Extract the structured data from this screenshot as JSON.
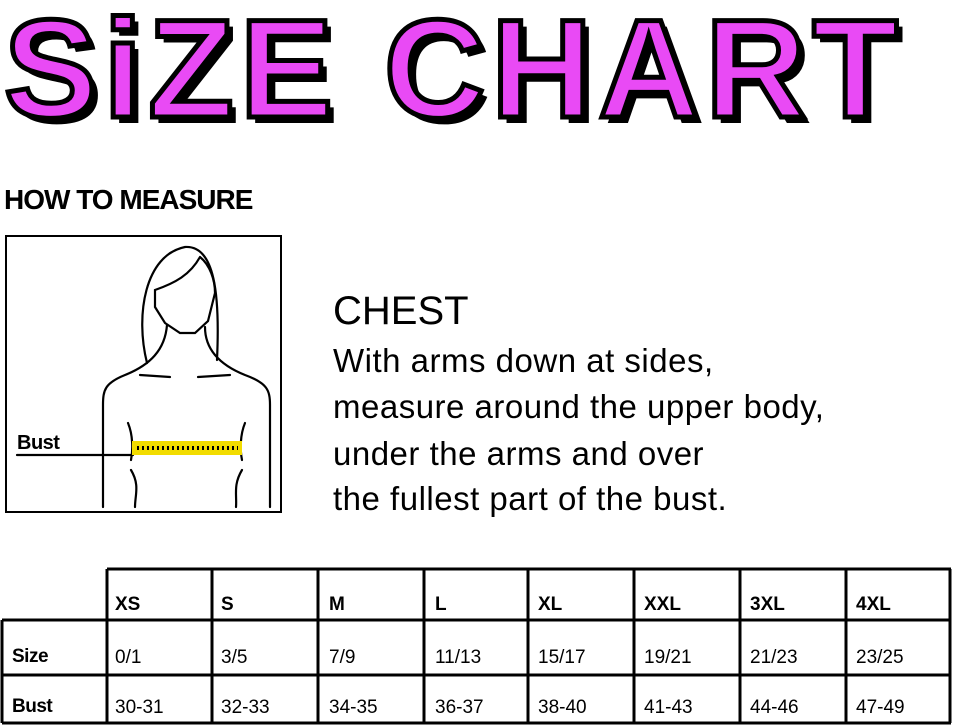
{
  "title": "SiZE CHART",
  "colors": {
    "title_fill": "#e94af5",
    "tape": "#f2dc00"
  },
  "how_to_measure": "HOW TO MEASURE",
  "illustration": {
    "label": "Bust"
  },
  "chest": {
    "heading": "CHEST",
    "lines": [
      "With arms down at sides,",
      "measure around the upper body,",
      "under the arms and over",
      "the fullest part of the bust."
    ]
  },
  "table": {
    "columns": [
      "XS",
      "S",
      "M",
      "L",
      "XL",
      "XXL",
      "3XL",
      "4XL"
    ],
    "rows": [
      {
        "label": "Size",
        "values": [
          "0/1",
          "3/5",
          "7/9",
          "11/13",
          "15/17",
          "19/21",
          "21/23",
          "23/25"
        ]
      },
      {
        "label": "Bust",
        "values": [
          "30-31",
          "32-33",
          "34-35",
          "36-37",
          "38-40",
          "41-43",
          "44-46",
          "47-49"
        ]
      }
    ]
  }
}
